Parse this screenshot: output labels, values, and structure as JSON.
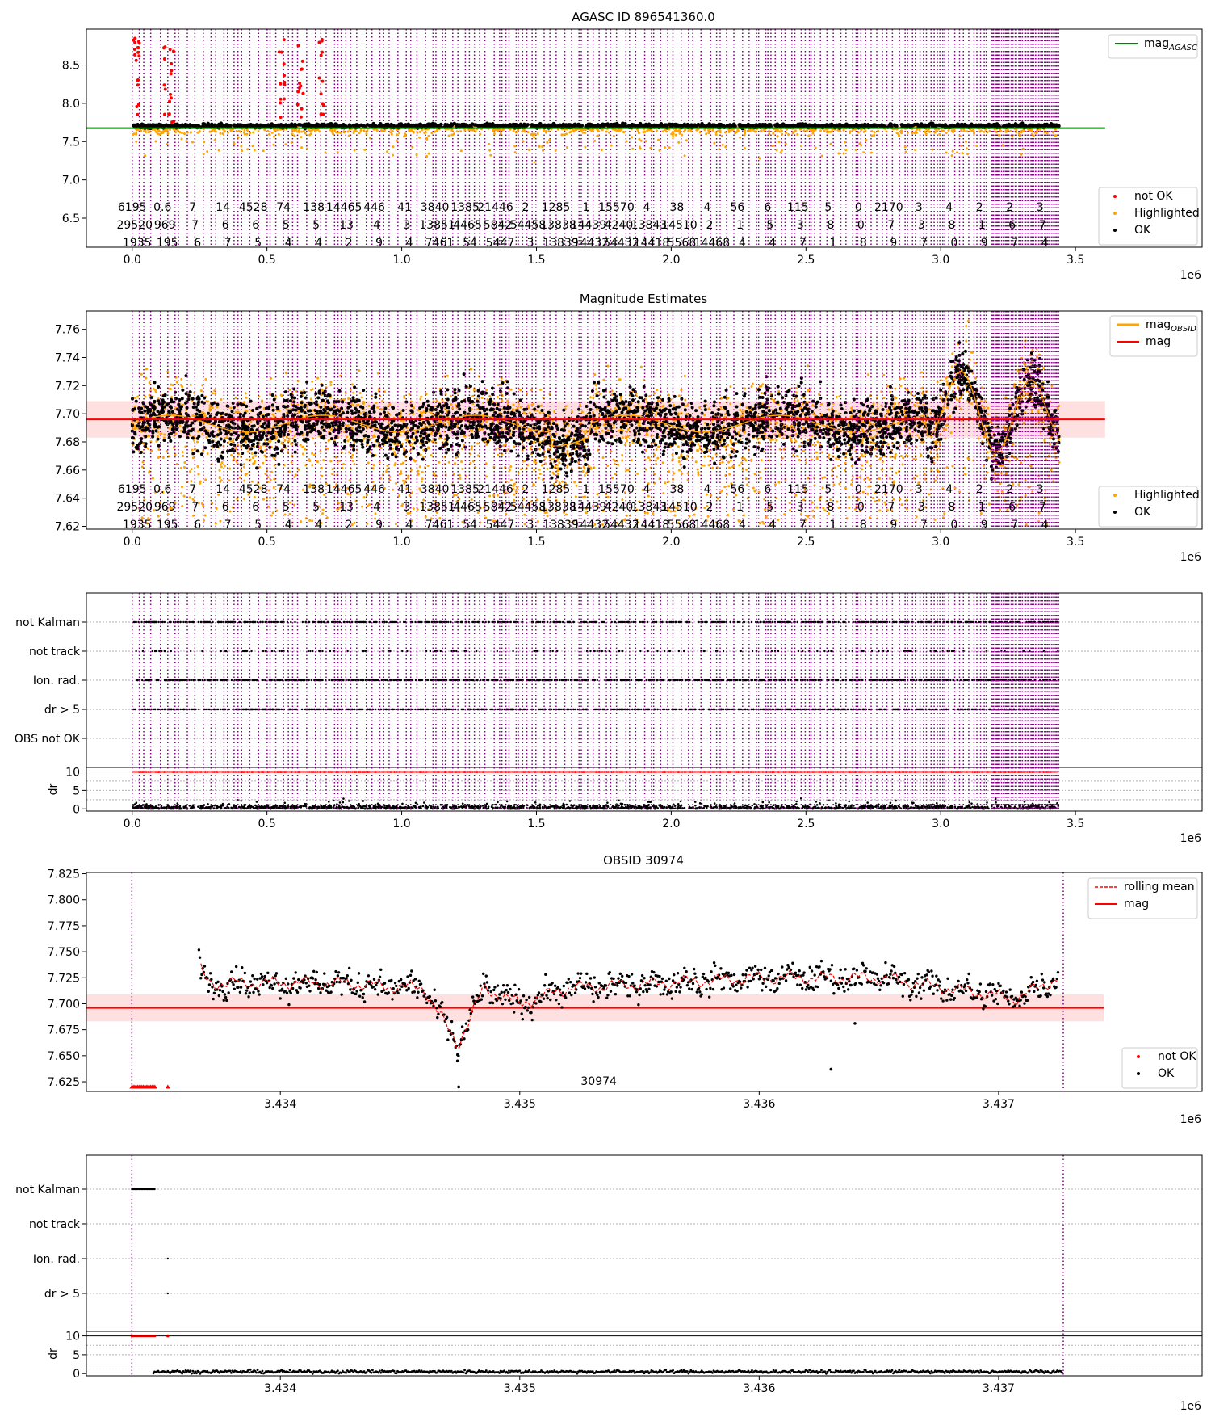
{
  "figure": {
    "multiplier": "1e6",
    "colors": {
      "obsid_line": "#800080",
      "ok": "#000000",
      "highlighted": "#ffa500",
      "not_ok": "#ff0000",
      "agasc": "#008000",
      "mag": "#ff0000",
      "band": "#ffcccc",
      "grid": "#b0b0b0"
    },
    "overview_xlim": [
      -170000,
      3970000
    ],
    "overview_xticks": [
      0,
      500000,
      1000000,
      1500000,
      2000000,
      2500000,
      3000000,
      3500000
    ],
    "overview_xticklabels": [
      "0.0",
      "0.5",
      "1.0",
      "1.5",
      "2.0",
      "2.5",
      "3.0",
      "3.5"
    ],
    "obsid_line_count": 260,
    "obs_start": 3433380,
    "obs_end": 3437270
  },
  "chart_data": [
    {
      "id": "agasc",
      "type": "scatter",
      "title": "AGASC ID 896541360.0",
      "ylim": [
        6.12,
        8.97
      ],
      "yticks": [
        6.5,
        7.0,
        7.5,
        8.0,
        8.5
      ],
      "yticklabels": [
        "6.5",
        "7.0",
        "7.5",
        "8.0",
        "8.5"
      ],
      "x_range": [
        0,
        3440000
      ],
      "series": [
        {
          "name": "not OK",
          "color": "#ff0000",
          "values_range": [
            7.1,
            8.9
          ]
        },
        {
          "name": "Highlighted",
          "color": "#ffa500",
          "values_range": [
            7.25,
            7.7
          ]
        },
        {
          "name": "OK",
          "color": "#000000",
          "values_range": [
            7.68,
            7.74
          ]
        }
      ],
      "lines": [
        {
          "name": "mag",
          "subscript": "AGASC",
          "color": "#008000",
          "value": 7.676,
          "x_range": [
            -170000,
            3610000
          ]
        }
      ],
      "obsid_labels": {
        "row1": [
          "6195",
          "0.6",
          "7",
          "14",
          "4528",
          "74",
          "138",
          "14465",
          "446",
          "41",
          "3840",
          "1385",
          "21446",
          "2",
          "1285",
          "1",
          "15570",
          "4",
          "38",
          "4",
          "56",
          "6",
          "115",
          "5",
          "0",
          "2170",
          "3",
          "4",
          "2",
          "2",
          "3"
        ],
        "row2": [
          "29520",
          "969",
          "7",
          "6",
          "6",
          "5",
          "5",
          "13",
          "4",
          "3",
          "13851",
          "4465",
          "5842",
          "54458",
          "13838",
          "14439",
          "4240",
          "13843",
          "14510",
          "2",
          "1",
          "5",
          "3",
          "8",
          "0",
          "7",
          "3",
          "8",
          "1",
          "6",
          "7"
        ],
        "row3": [
          "1935",
          "195",
          "6",
          "7",
          "5",
          "4",
          "4",
          "2",
          "9",
          "4",
          "7461",
          "54",
          "5447",
          "3",
          "13839",
          "14432",
          "54432",
          "14418",
          "5568",
          "14468",
          "4",
          "4",
          "7",
          "1",
          "8",
          "9",
          "7",
          "0",
          "9",
          "7",
          "4"
        ]
      }
    },
    {
      "id": "mag-estimates",
      "type": "scatter",
      "title": "Magnitude Estimates",
      "ylim": [
        7.618,
        7.773
      ],
      "yticks": [
        7.62,
        7.64,
        7.66,
        7.68,
        7.7,
        7.72,
        7.74,
        7.76
      ],
      "yticklabels": [
        "7.62",
        "7.64",
        "7.66",
        "7.68",
        "7.70",
        "7.72",
        "7.74",
        "7.76"
      ],
      "x_range": [
        0,
        3440000
      ],
      "series": [
        {
          "name": "Highlighted",
          "color": "#ffa500"
        },
        {
          "name": "OK",
          "color": "#000000"
        }
      ],
      "lines": [
        {
          "name": "mag",
          "subscript": "OBSID",
          "color": "#ffa500"
        },
        {
          "name": "mag",
          "color": "#ff0000",
          "value": 7.696,
          "band": [
            7.683,
            7.709
          ]
        }
      ]
    },
    {
      "id": "flags",
      "type": "scatter",
      "categories": [
        "not Kalman",
        "not track",
        "Ion. rad.",
        "dr > 5",
        "OBS not OK"
      ],
      "ylabel": "dr",
      "dr_ylim": [
        -0.6,
        11.2
      ],
      "dr_yticks": [
        0,
        5,
        10
      ],
      "dr_yticklabels": [
        "0",
        "5",
        "10"
      ],
      "dr_threshold": 10
    },
    {
      "id": "obsid",
      "type": "line",
      "title": "OBSID 30974",
      "xlim": [
        3433190,
        3437850
      ],
      "xticks": [
        3434000,
        3435000,
        3436000,
        3437000
      ],
      "xticklabels": [
        "3.434",
        "3.435",
        "3.436",
        "3.437"
      ],
      "ylim": [
        7.6157,
        7.8262
      ],
      "yticks": [
        7.625,
        7.65,
        7.675,
        7.7,
        7.725,
        7.75,
        7.775,
        7.8,
        7.825
      ],
      "yticklabels": [
        "7.625",
        "7.650",
        "7.675",
        "7.700",
        "7.725",
        "7.750",
        "7.775",
        "7.800",
        "7.825"
      ],
      "obsid_label": "30974",
      "obsid_label_x": 3435330,
      "lines": [
        {
          "name": "rolling mean",
          "color": "#ff0000",
          "style": "dashed"
        },
        {
          "name": "mag",
          "color": "#ff0000",
          "value": 7.696,
          "band": [
            7.683,
            7.709
          ],
          "x_range": [
            3433190,
            3437440
          ]
        }
      ],
      "series": [
        {
          "name": "not OK",
          "color": "#ff0000"
        },
        {
          "name": "OK",
          "color": "#000000"
        }
      ],
      "features": [
        {
          "x": 3433660,
          "y": 7.735
        },
        {
          "x": 3433700,
          "y": 7.72
        },
        {
          "x": 3434200,
          "y": 7.72
        },
        {
          "x": 3434600,
          "y": 7.715
        },
        {
          "x": 3434740,
          "y": 7.66
        },
        {
          "x": 3434850,
          "y": 7.715
        },
        {
          "x": 3435000,
          "y": 7.7
        },
        {
          "x": 3435200,
          "y": 7.715
        },
        {
          "x": 3436000,
          "y": 7.725
        },
        {
          "x": 3436500,
          "y": 7.725
        },
        {
          "x": 3437070,
          "y": 7.705
        },
        {
          "x": 3437250,
          "y": 7.725
        }
      ]
    },
    {
      "id": "obsid-flags",
      "type": "scatter",
      "xlim": [
        3433190,
        3437850
      ],
      "categories": [
        "not Kalman",
        "not track",
        "Ion. rad.",
        "dr > 5"
      ],
      "ylabel": "dr",
      "dr_ylim": [
        -0.6,
        11.2
      ],
      "dr_yticks": [
        0,
        5,
        10
      ],
      "dr_yticklabels": [
        "0",
        "5",
        "10"
      ],
      "dr_threshold": 10
    }
  ]
}
